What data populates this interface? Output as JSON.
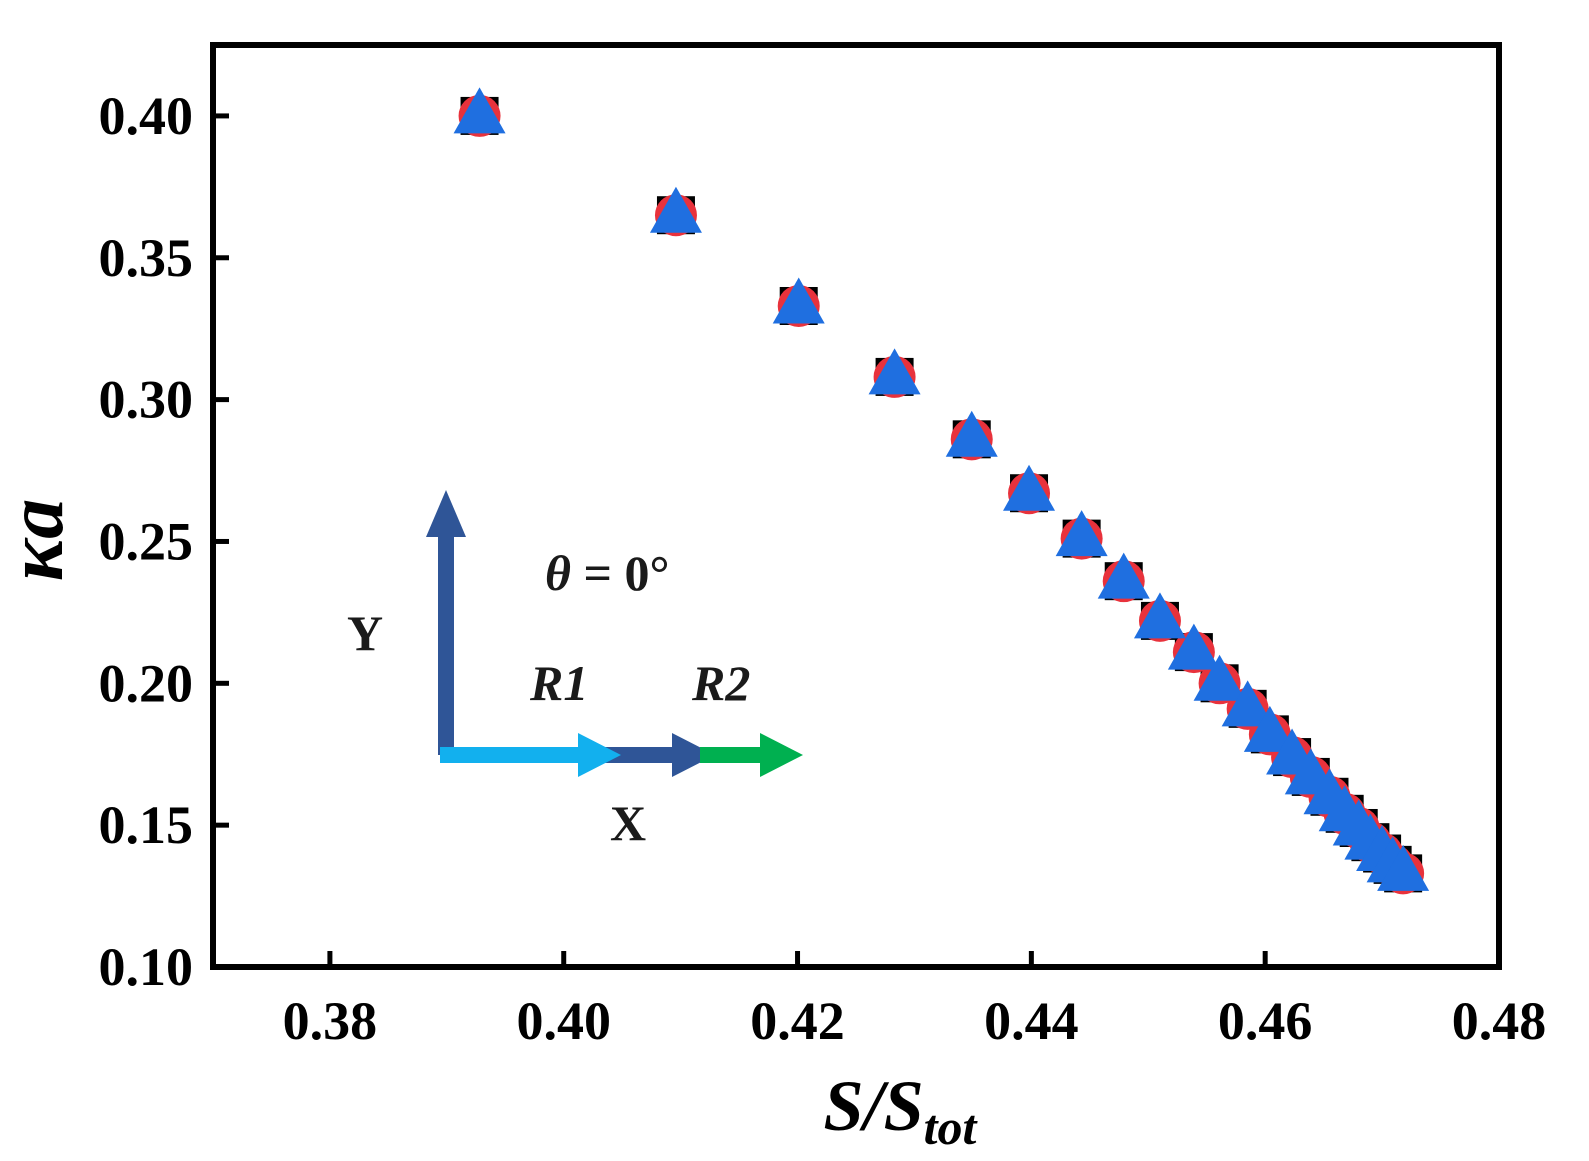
{
  "colors": {
    "square": "#000000",
    "circle": "#e8323c",
    "triangle": "#1f6fe0",
    "arrow_y": "#2f5597",
    "arrow_r1": "#12b0ee",
    "arrow_x": "#2f5597",
    "arrow_r2": "#00b050"
  },
  "annotations": {
    "theta_symbol": "θ",
    "theta_rest": " = 0°",
    "y_label": "Y",
    "x_label": "X",
    "r1_label": "R1",
    "r2_label": "R2"
  },
  "chart_data": {
    "type": "scatter",
    "title": "",
    "xlabel_main": "S/S",
    "xlabel_sub": "tot",
    "ylabel": "κa",
    "xlim": [
      0.37,
      0.48
    ],
    "ylim": [
      0.1,
      0.425
    ],
    "xticks": [
      0.38,
      0.4,
      0.42,
      0.44,
      0.46,
      0.48
    ],
    "xtick_labels": [
      "0.38",
      "0.40",
      "0.42",
      "0.44",
      "0.46",
      "0.48"
    ],
    "yticks": [
      0.1,
      0.15,
      0.2,
      0.25,
      0.3,
      0.35,
      0.4
    ],
    "ytick_labels": [
      "0.10",
      "0.15",
      "0.20",
      "0.25",
      "0.30",
      "0.35",
      "0.40"
    ],
    "grid": false,
    "series": [
      {
        "name": "square",
        "marker": "square",
        "x": [
          0.3928,
          0.4096,
          0.4201,
          0.4283,
          0.4349,
          0.4398,
          0.4443,
          0.4479,
          0.451,
          0.4539,
          0.4561,
          0.4585,
          0.4604,
          0.4623,
          0.4639,
          0.4655,
          0.4668,
          0.468,
          0.469,
          0.47,
          0.4709,
          0.4718
        ],
        "y": [
          0.4,
          0.365,
          0.333,
          0.308,
          0.286,
          0.267,
          0.251,
          0.236,
          0.222,
          0.211,
          0.2,
          0.191,
          0.182,
          0.174,
          0.167,
          0.16,
          0.154,
          0.149,
          0.144,
          0.14,
          0.136,
          0.133
        ]
      },
      {
        "name": "circle",
        "marker": "circle",
        "x": [
          0.3928,
          0.4096,
          0.4201,
          0.4283,
          0.4349,
          0.4398,
          0.4443,
          0.4479,
          0.451,
          0.4539,
          0.4561,
          0.4585,
          0.4604,
          0.4623,
          0.4639,
          0.4655,
          0.4668,
          0.468,
          0.469,
          0.47,
          0.4709,
          0.4718
        ],
        "y": [
          0.4,
          0.365,
          0.333,
          0.308,
          0.286,
          0.267,
          0.251,
          0.236,
          0.222,
          0.211,
          0.2,
          0.191,
          0.182,
          0.174,
          0.167,
          0.16,
          0.154,
          0.149,
          0.144,
          0.14,
          0.136,
          0.133
        ]
      },
      {
        "name": "triangle",
        "marker": "triangle",
        "x": [
          0.3928,
          0.4096,
          0.4201,
          0.4283,
          0.4349,
          0.4398,
          0.4443,
          0.4479,
          0.451,
          0.4539,
          0.4561,
          0.4585,
          0.4604,
          0.4623,
          0.4639,
          0.4655,
          0.4668,
          0.468,
          0.469,
          0.47,
          0.4709,
          0.4718
        ],
        "y": [
          0.4,
          0.365,
          0.333,
          0.308,
          0.286,
          0.267,
          0.251,
          0.236,
          0.222,
          0.211,
          0.2,
          0.191,
          0.182,
          0.174,
          0.167,
          0.16,
          0.154,
          0.149,
          0.144,
          0.14,
          0.136,
          0.133
        ]
      }
    ]
  }
}
